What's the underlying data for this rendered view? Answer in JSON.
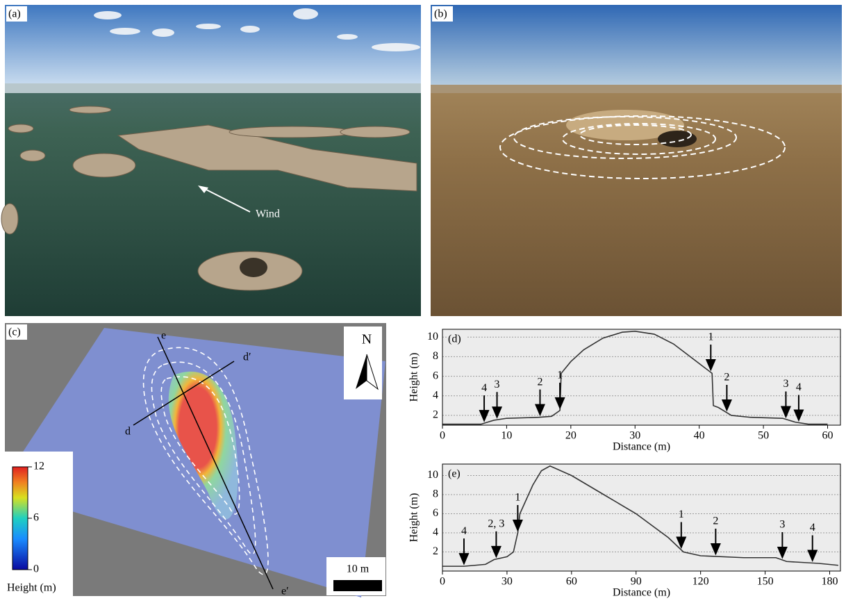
{
  "panel_a": {
    "label": "(a)",
    "annotation": "Wind"
  },
  "panel_b": {
    "label": "(b)"
  },
  "panel_c": {
    "label": "(c)",
    "north": "N",
    "scale_bar": "10 m",
    "profile_labels": [
      "d",
      "d′",
      "e",
      "e′"
    ],
    "colorbar": {
      "title": "Height (m)",
      "lim": [
        0,
        12
      ],
      "ticks": [
        0,
        6,
        12
      ]
    }
  },
  "chart_data": [
    {
      "type": "line",
      "label": "(d)",
      "xlabel": "Distance (m)",
      "ylabel": "Height (m)",
      "x": [
        0,
        6,
        8,
        10,
        15,
        17,
        18.3,
        18.5,
        20,
        22,
        25,
        28,
        30,
        33,
        36,
        39,
        41,
        42,
        42.2,
        43,
        45,
        48,
        53,
        55,
        57,
        60
      ],
      "values": [
        1.1,
        1.1,
        1.5,
        1.7,
        1.8,
        1.9,
        2.5,
        6.3,
        7.5,
        8.7,
        9.9,
        10.5,
        10.6,
        10.3,
        9.3,
        7.8,
        6.8,
        6.3,
        3,
        2.8,
        2,
        1.8,
        1.7,
        1.3,
        1.1,
        1.1
      ],
      "color": "#333333",
      "xlim": [
        0,
        62
      ],
      "ylim": [
        1,
        10.8
      ],
      "xticks": [
        0,
        10,
        20,
        30,
        40,
        50,
        60
      ],
      "yticks": [
        2,
        4,
        6,
        8,
        10
      ],
      "grid": true,
      "annotations": [
        {
          "label": "4",
          "x": 6.5
        },
        {
          "label": "3",
          "x": 8.5
        },
        {
          "label": "2",
          "x": 15.2
        },
        {
          "label": "1",
          "x": 18.3
        },
        {
          "label": "1",
          "x": 41.8
        },
        {
          "label": "2",
          "x": 44.3
        },
        {
          "label": "3",
          "x": 53.5
        },
        {
          "label": "4",
          "x": 55.5
        }
      ]
    },
    {
      "type": "line",
      "label": "(e)",
      "xlabel": "Distance (m)",
      "ylabel": "Height (m)",
      "x": [
        0,
        10,
        20,
        24,
        30,
        33,
        35,
        36,
        38,
        42,
        46,
        50,
        60,
        75,
        90,
        105,
        112,
        120,
        140,
        155,
        160,
        175,
        184
      ],
      "values": [
        0.5,
        0.5,
        0.7,
        1.2,
        1.5,
        2,
        4,
        6,
        7,
        9,
        10.5,
        11,
        10,
        8,
        6,
        3.5,
        2,
        1.6,
        1.4,
        1.4,
        1,
        0.8,
        0.6
      ],
      "color": "#333333",
      "xlim": [
        0,
        185
      ],
      "ylim": [
        0,
        11.2
      ],
      "xticks": [
        0,
        30,
        60,
        90,
        120,
        150,
        180
      ],
      "yticks": [
        2,
        4,
        6,
        8,
        10
      ],
      "grid": true,
      "annotations": [
        {
          "label": "4",
          "x": 10
        },
        {
          "label": "2, 3",
          "x": 25
        },
        {
          "label": "1",
          "x": 35
        },
        {
          "label": "1",
          "x": 111
        },
        {
          "label": "2",
          "x": 127
        },
        {
          "label": "3",
          "x": 158
        },
        {
          "label": "4",
          "x": 172
        }
      ]
    }
  ]
}
